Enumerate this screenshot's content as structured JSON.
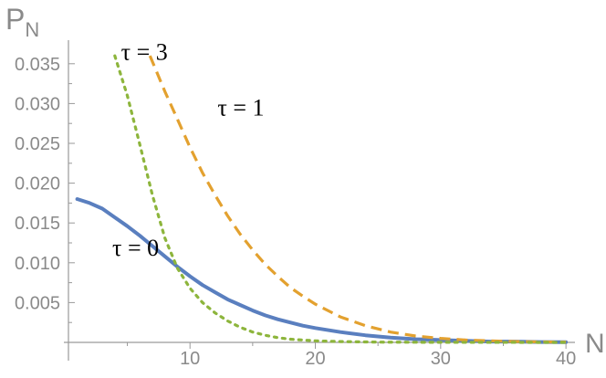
{
  "chart_data": {
    "type": "line",
    "title": "",
    "xlabel": "N",
    "ylabel": "P_N",
    "ylabel_main": "P",
    "ylabel_sub": "N",
    "xlim": [
      0.3,
      40.5
    ],
    "ylim": [
      0,
      0.0375
    ],
    "x_ticks": [
      10,
      20,
      30,
      40
    ],
    "x_tick_labels": [
      "10",
      "20",
      "30",
      "40"
    ],
    "x_minor_ticks": [
      5,
      15,
      25,
      35
    ],
    "y_ticks": [
      0.005,
      0.01,
      0.015,
      0.02,
      0.025,
      0.03,
      0.035
    ],
    "y_tick_labels": [
      "0.005",
      "0.010",
      "0.015",
      "0.020",
      "0.025",
      "0.030",
      "0.035"
    ],
    "grid": false,
    "series": [
      {
        "name": "τ = 0",
        "color": "#5a7fbf",
        "style": "solid",
        "points": [
          [
            1,
            0.018
          ],
          [
            2,
            0.0175
          ],
          [
            3,
            0.0168
          ],
          [
            4,
            0.0157
          ],
          [
            5,
            0.0146
          ],
          [
            6,
            0.0134
          ],
          [
            7,
            0.0121
          ],
          [
            8,
            0.0108
          ],
          [
            9,
            0.0095
          ],
          [
            10,
            0.0083
          ],
          [
            11,
            0.0072
          ],
          [
            12,
            0.0063
          ],
          [
            13,
            0.0054
          ],
          [
            14,
            0.0047
          ],
          [
            15,
            0.004
          ],
          [
            16,
            0.0034
          ],
          [
            17,
            0.0029
          ],
          [
            18,
            0.0025
          ],
          [
            19,
            0.0021
          ],
          [
            20,
            0.0018
          ],
          [
            22,
            0.0013
          ],
          [
            24,
            0.0009
          ],
          [
            26,
            0.0006
          ],
          [
            28,
            0.0004
          ],
          [
            30,
            0.0003
          ],
          [
            32,
            0.0002
          ],
          [
            34,
            0.0001
          ],
          [
            36,
            0.0001
          ],
          [
            38,
            5e-05
          ],
          [
            40,
            3e-05
          ]
        ]
      },
      {
        "name": "τ = 1",
        "color": "#e3a12f",
        "style": "dashed",
        "points": [
          [
            6.8,
            0.036
          ],
          [
            8,
            0.0315
          ],
          [
            9,
            0.028
          ],
          [
            10,
            0.0245
          ],
          [
            11,
            0.0213
          ],
          [
            12,
            0.0185
          ],
          [
            13,
            0.0159
          ],
          [
            14,
            0.0136
          ],
          [
            15,
            0.0116
          ],
          [
            16,
            0.0098
          ],
          [
            17,
            0.0083
          ],
          [
            18,
            0.0069
          ],
          [
            19,
            0.0058
          ],
          [
            20,
            0.0048
          ],
          [
            22,
            0.0032
          ],
          [
            24,
            0.0021
          ],
          [
            26,
            0.0013
          ],
          [
            28,
            0.0008
          ],
          [
            30,
            0.0005
          ],
          [
            32,
            0.0003
          ],
          [
            34,
            0.0002
          ],
          [
            36,
            0.0001
          ],
          [
            38,
            6e-05
          ],
          [
            40,
            3e-05
          ]
        ]
      },
      {
        "name": "τ = 3",
        "color": "#8db53c",
        "style": "dotted",
        "points": [
          [
            4.0,
            0.036
          ],
          [
            5,
            0.031
          ],
          [
            6,
            0.0248
          ],
          [
            7,
            0.0185
          ],
          [
            8,
            0.0131
          ],
          [
            9,
            0.0093
          ],
          [
            10,
            0.0068
          ],
          [
            11,
            0.005
          ],
          [
            12,
            0.0037
          ],
          [
            13,
            0.0027
          ],
          [
            14,
            0.0019
          ],
          [
            15,
            0.0013
          ],
          [
            16,
            0.0009
          ],
          [
            17,
            0.0006
          ],
          [
            18,
            0.0004
          ],
          [
            20,
            0.0002
          ],
          [
            22,
            0.0001
          ],
          [
            25,
            3e-05
          ],
          [
            30,
            1e-05
          ],
          [
            40,
            0
          ]
        ]
      }
    ],
    "annotations": [
      {
        "text": "τ = 3",
        "series": "τ = 3",
        "x": 4.5,
        "y": 0.0355
      },
      {
        "text": "τ = 1",
        "series": "τ = 1",
        "x": 12.2,
        "y": 0.0285
      },
      {
        "text": "τ = 0",
        "series": "τ = 0",
        "x": 3.8,
        "y": 0.0109
      }
    ]
  }
}
